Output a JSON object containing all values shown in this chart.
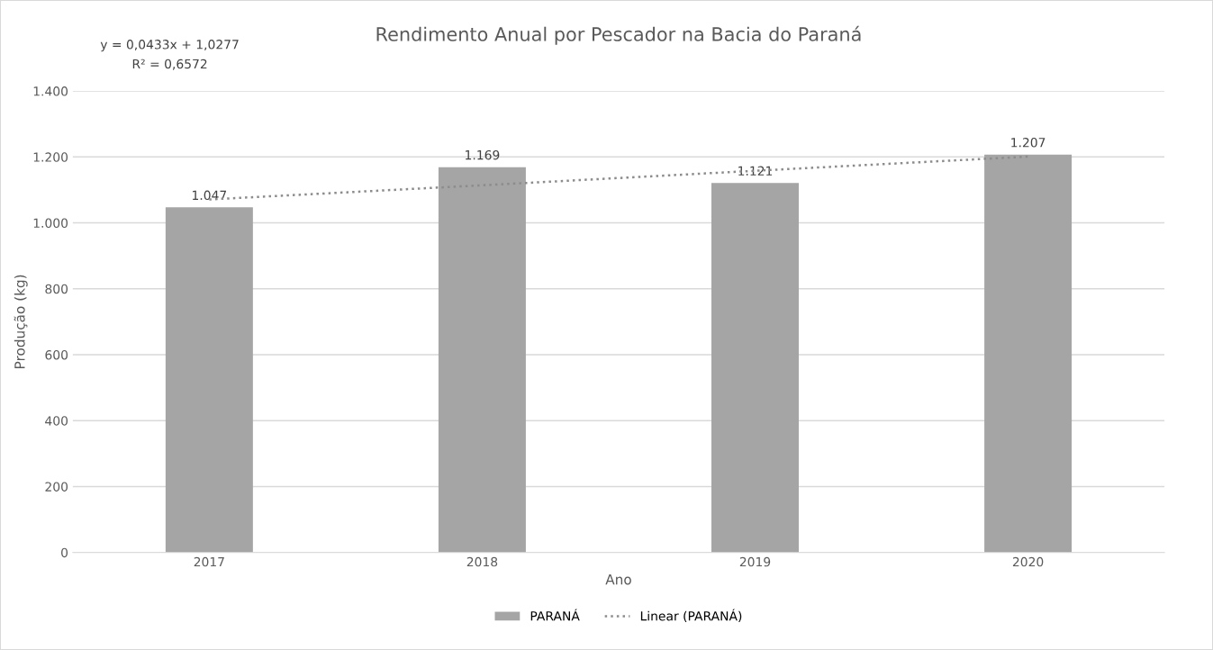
{
  "chart_data": {
    "type": "bar",
    "title": "Rendimento Anual por Pescador na Bacia do Paraná",
    "xlabel": "Ano",
    "ylabel": "Produção (kg)",
    "annotations": [
      "y = 0,0433x + 1,0277",
      "R² = 0,6572"
    ],
    "categories": [
      "2017",
      "2018",
      "2019",
      "2020"
    ],
    "series": [
      {
        "name": "PARANÁ",
        "color": "#a5a5a5",
        "values": [
          1047,
          1169,
          1121,
          1207
        ],
        "value_labels": [
          "1.047",
          "1.169",
          "1.121",
          "1.207"
        ]
      },
      {
        "name": "Linear (PARANÁ)",
        "type": "line",
        "color": "#8c8c8c",
        "line_style": "dotted",
        "values": [
          1071,
          1114,
          1158,
          1201
        ]
      }
    ],
    "ylim": [
      0,
      1400
    ],
    "yticks": [
      0,
      200,
      400,
      600,
      800,
      {
        "value": 1000,
        "label": "1.000"
      },
      {
        "value": 1200,
        "label": "1.200"
      },
      {
        "value": 1400,
        "label": "1.400"
      }
    ],
    "grid": "y",
    "legend": "bottom"
  }
}
